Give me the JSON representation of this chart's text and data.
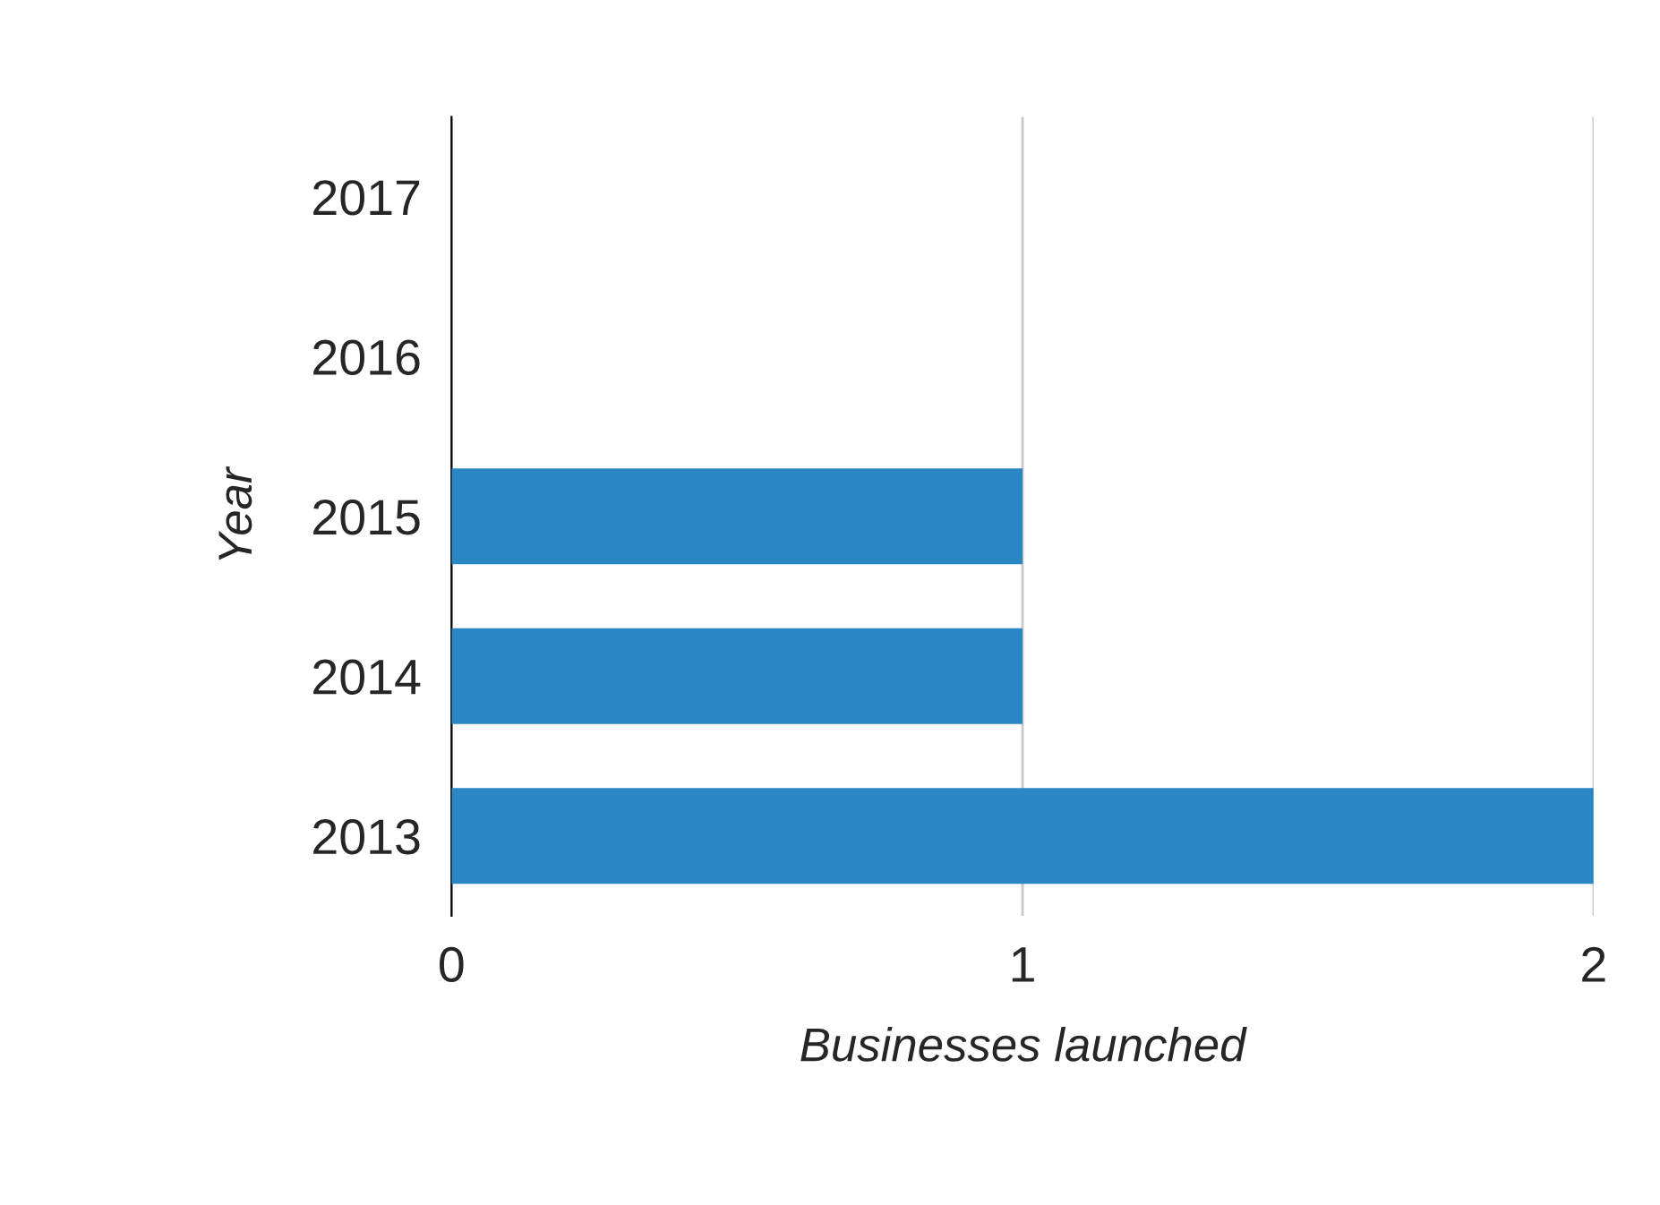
{
  "chart_data": {
    "type": "bar",
    "orientation": "horizontal",
    "xlabel": "Businesses launched",
    "ylabel": "Year",
    "categories": [
      "2017",
      "2016",
      "2015",
      "2014",
      "2013"
    ],
    "values": [
      0,
      0,
      1,
      1,
      2
    ],
    "color": "#2a87c3",
    "xlim": [
      0,
      2
    ],
    "xticks": [
      0,
      1,
      2
    ],
    "grid": "x",
    "legend": false
  }
}
